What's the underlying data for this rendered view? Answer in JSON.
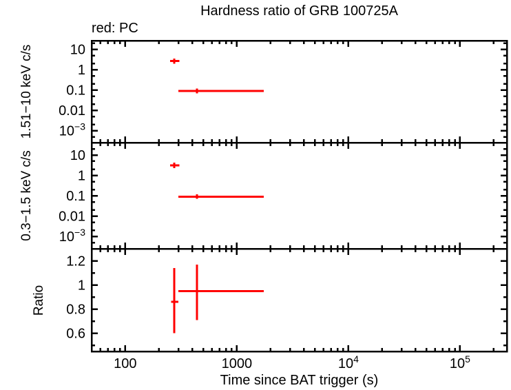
{
  "chart_data": {
    "type": "scatter",
    "title": "Hardness ratio of GRB 100725A",
    "legend": "red: PC",
    "xlabel": "Time since BAT trigger (s)",
    "xscale": "log",
    "xlim": [
      50,
      263000
    ],
    "series": [
      {
        "name": "PC",
        "color": "#ff0000"
      }
    ],
    "xticks": [
      {
        "v": 100,
        "base": "100",
        "exp": ""
      },
      {
        "v": 1000,
        "base": "1000",
        "exp": ""
      },
      {
        "v": 10000,
        "base": "10",
        "exp": "4"
      },
      {
        "v": 100000,
        "base": "10",
        "exp": "5"
      }
    ],
    "panels": [
      {
        "ylabel": "1.51−10 keV c/s",
        "yscale": "log",
        "ylim": [
          0.00026,
          27
        ],
        "yticks": [
          {
            "v": 10,
            "base": "10",
            "exp": ""
          },
          {
            "v": 1,
            "base": "1",
            "exp": ""
          },
          {
            "v": 0.1,
            "base": "0.1",
            "exp": ""
          },
          {
            "v": 0.01,
            "base": "0.01",
            "exp": ""
          },
          {
            "v": 0.001,
            "base": "10",
            "exp": "−3"
          }
        ],
        "points": [
          {
            "t": 275,
            "t_lo": 252,
            "t_hi": 307,
            "y": 2.7,
            "y_lo": 2.0,
            "y_hi": 3.6
          },
          {
            "t": 440,
            "t_lo": 300,
            "t_hi": 1740,
            "y": 0.09,
            "y_lo": 0.07,
            "y_hi": 0.12
          }
        ]
      },
      {
        "ylabel": "0.3−1.5 keV c/s",
        "yscale": "log",
        "ylim": [
          0.00025,
          41
        ],
        "yticks": [
          {
            "v": 10,
            "base": "10",
            "exp": ""
          },
          {
            "v": 1,
            "base": "1",
            "exp": ""
          },
          {
            "v": 0.1,
            "base": "0.1",
            "exp": ""
          },
          {
            "v": 0.01,
            "base": "0.01",
            "exp": ""
          },
          {
            "v": 0.001,
            "base": "10",
            "exp": "−3"
          }
        ],
        "points": [
          {
            "t": 275,
            "t_lo": 252,
            "t_hi": 307,
            "y": 3.1,
            "y_lo": 2.3,
            "y_hi": 4.2
          },
          {
            "t": 440,
            "t_lo": 300,
            "t_hi": 1740,
            "y": 0.09,
            "y_lo": 0.07,
            "y_hi": 0.12
          }
        ]
      },
      {
        "ylabel": "Ratio",
        "yscale": "linear",
        "ylim": [
          0.45,
          1.3
        ],
        "yticks": [
          {
            "v": 1.2,
            "base": "1.2",
            "exp": ""
          },
          {
            "v": 1,
            "base": "1",
            "exp": ""
          },
          {
            "v": 0.8,
            "base": "0.8",
            "exp": ""
          },
          {
            "v": 0.6,
            "base": "0.6",
            "exp": ""
          }
        ],
        "points": [
          {
            "t": 275,
            "t_lo": 258,
            "t_hi": 299,
            "y": 0.86,
            "y_lo": 0.6,
            "y_hi": 1.14
          },
          {
            "t": 440,
            "t_lo": 300,
            "t_hi": 1740,
            "y": 0.95,
            "y_lo": 0.71,
            "y_hi": 1.17
          }
        ]
      }
    ]
  }
}
